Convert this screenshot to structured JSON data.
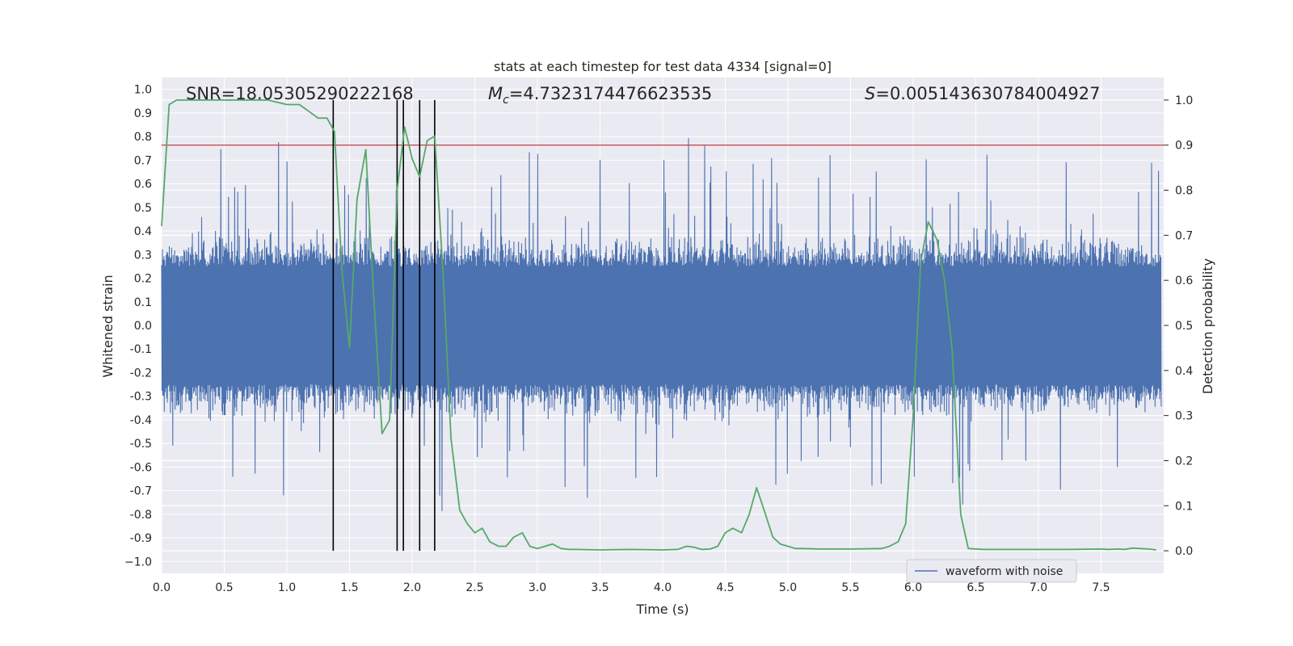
{
  "chart_data": {
    "type": "line",
    "title": "stats at each timestep for test data 4334 [signal=0]",
    "xlabel": "Time (s)",
    "ylabel": "Whitened strain",
    "y2label": "Detection probability",
    "xlim": [
      0.0,
      8.0
    ],
    "ylim": [
      -1.05,
      1.05
    ],
    "y2lim": [
      -0.05,
      1.05
    ],
    "x_ticks": [
      "0.0",
      "0.5",
      "1.0",
      "1.5",
      "2.0",
      "2.5",
      "3.0",
      "3.5",
      "4.0",
      "4.5",
      "5.0",
      "5.5",
      "6.0",
      "6.5",
      "7.0",
      "7.5"
    ],
    "y_ticks": [
      "1.0",
      "0.9",
      "0.8",
      "0.7",
      "0.6",
      "0.5",
      "0.4",
      "0.3",
      "0.2",
      "0.1",
      "0.0",
      "-0.1",
      "-0.2",
      "-0.3",
      "-0.4",
      "-0.5",
      "-0.6",
      "-0.7",
      "-0.8",
      "-0.9",
      "−1.0"
    ],
    "y2_ticks": [
      "1.0",
      "0.9",
      "0.8",
      "0.7",
      "0.6",
      "0.5",
      "0.4",
      "0.3",
      "0.2",
      "0.1",
      "0.0"
    ],
    "grid": true,
    "legend_placement": "lower right",
    "annotations": {
      "snr": "SNR=18.05305290222168",
      "mc_symbol": "M",
      "mc_sub": "c",
      "mc_value": "=4.7323174476623535",
      "s_symbol": "S",
      "s_value": "=0.005143630784004927"
    },
    "series": [
      {
        "name": "waveform with noise",
        "color": "#4c72b0",
        "style": "dense noise, amplitude mostly within ±0.45 with spikes to ±1.0"
      },
      {
        "color": "#55a868",
        "axis": "right",
        "x": [
          0.0,
          0.06,
          0.12,
          0.3,
          0.6,
          0.85,
          1.0,
          1.1,
          1.25,
          1.32,
          1.38,
          1.44,
          1.5,
          1.56,
          1.63,
          1.69,
          1.76,
          1.82,
          1.88,
          1.94,
          2.0,
          2.06,
          2.12,
          2.18,
          2.25,
          2.31,
          2.38,
          2.44,
          2.5,
          2.56,
          2.62,
          2.69,
          2.75,
          2.81,
          2.88,
          2.94,
          3.0,
          3.06,
          3.12,
          3.19,
          3.25,
          3.31,
          3.5,
          3.75,
          4.0,
          4.12,
          4.19,
          4.25,
          4.31,
          4.38,
          4.44,
          4.5,
          4.56,
          4.63,
          4.69,
          4.75,
          4.81,
          4.88,
          4.94,
          5.0,
          5.06,
          5.12,
          5.25,
          5.5,
          5.75,
          5.81,
          5.88,
          5.94,
          6.0,
          6.06,
          6.12,
          6.19,
          6.25,
          6.31,
          6.38,
          6.44,
          6.5,
          6.56,
          6.75,
          7.0,
          7.25,
          7.5,
          7.56,
          7.63,
          7.69,
          7.75,
          7.81,
          7.88,
          7.94
        ],
        "values": [
          0.72,
          0.99,
          1.0,
          1.0,
          1.0,
          1.0,
          0.99,
          0.99,
          0.96,
          0.96,
          0.93,
          0.62,
          0.45,
          0.78,
          0.89,
          0.58,
          0.26,
          0.29,
          0.8,
          0.94,
          0.87,
          0.83,
          0.91,
          0.92,
          0.6,
          0.25,
          0.09,
          0.06,
          0.04,
          0.05,
          0.02,
          0.01,
          0.01,
          0.03,
          0.04,
          0.01,
          0.005,
          0.01,
          0.015,
          0.005,
          0.003,
          0.003,
          0.002,
          0.003,
          0.002,
          0.003,
          0.01,
          0.008,
          0.003,
          0.004,
          0.01,
          0.04,
          0.05,
          0.04,
          0.08,
          0.14,
          0.09,
          0.03,
          0.015,
          0.01,
          0.005,
          0.005,
          0.004,
          0.004,
          0.005,
          0.01,
          0.02,
          0.06,
          0.3,
          0.64,
          0.73,
          0.69,
          0.6,
          0.45,
          0.08,
          0.005,
          0.004,
          0.003,
          0.003,
          0.003,
          0.003,
          0.004,
          0.003,
          0.004,
          0.003,
          0.006,
          0.005,
          0.004,
          0.002
        ]
      }
    ],
    "threshold": {
      "value": 0.9,
      "axis": "right",
      "color": "#c44e52"
    },
    "markers": {
      "x": [
        1.37,
        1.88,
        1.93,
        2.06,
        2.18
      ],
      "color": "#000000"
    }
  }
}
